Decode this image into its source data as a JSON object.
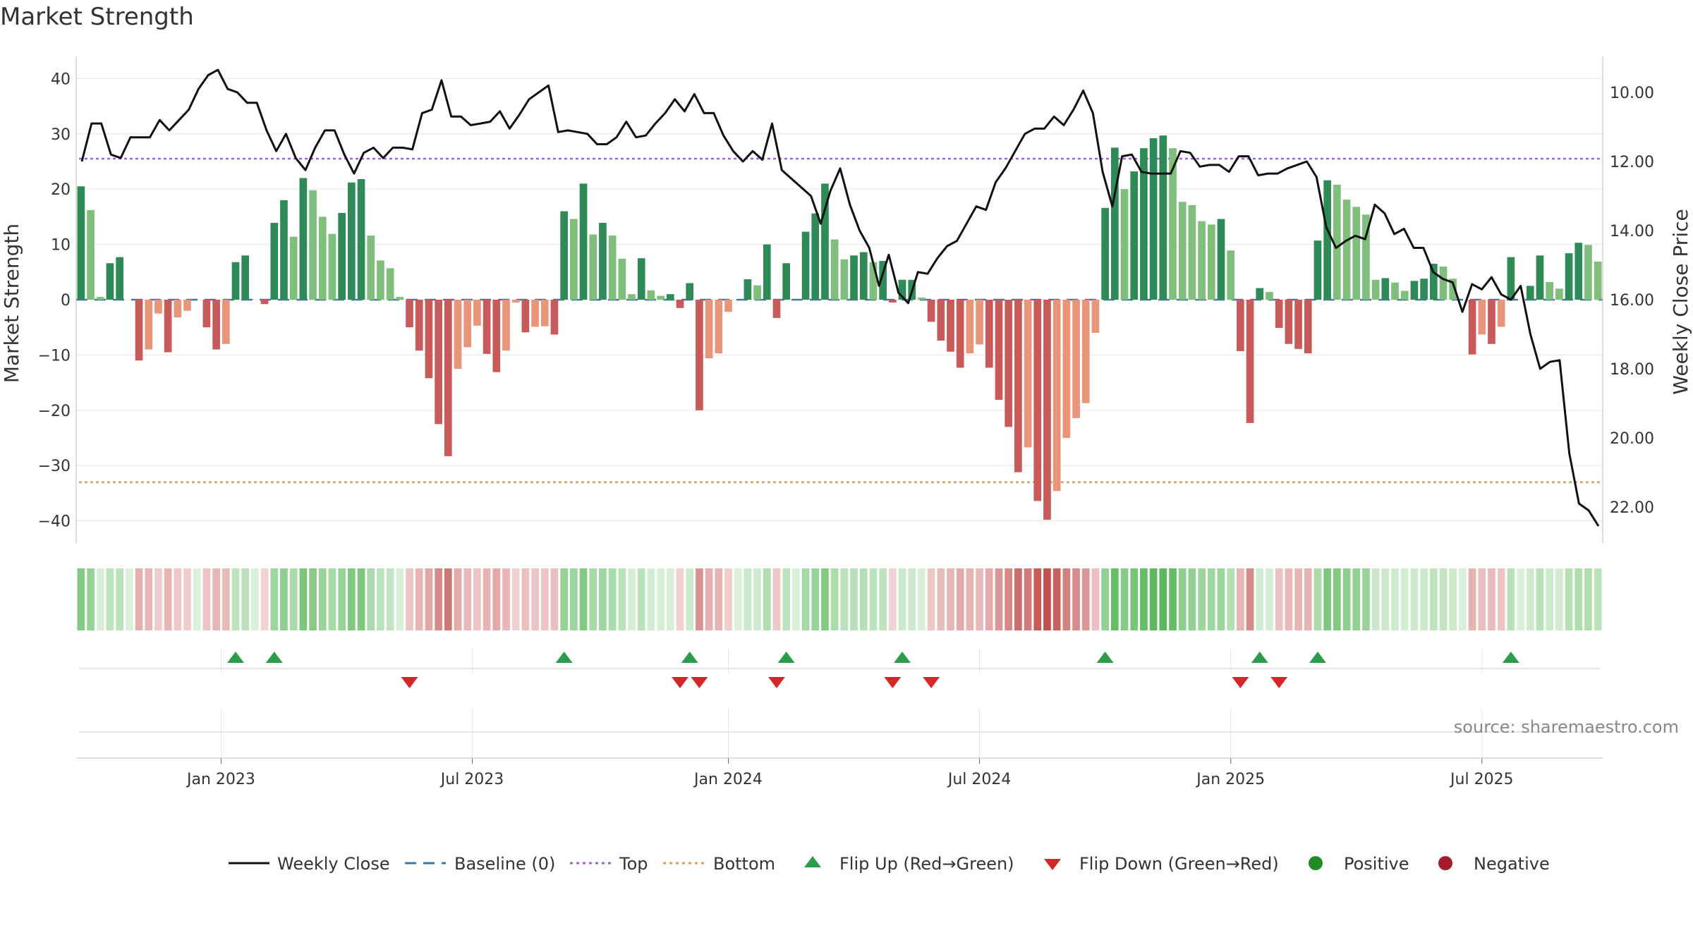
{
  "chart_data": {
    "type": "bar",
    "title": "Market Strength",
    "ylabel_left": "Market Strength",
    "ylabel_right": "Weekly Close Price",
    "ylim_left": [
      -44,
      44
    ],
    "ylim_right": [
      9,
      23
    ],
    "yticks_left": [
      40,
      30,
      20,
      10,
      0,
      -10,
      -20,
      -30,
      -40
    ],
    "yticks_left_labels": [
      "40",
      "30",
      "20",
      "10",
      "0",
      "−10",
      "−20",
      "−30",
      "−40"
    ],
    "yticks_right": [
      22,
      20,
      18,
      16,
      14,
      12,
      10
    ],
    "yticks_right_labels": [
      "22.00",
      "20.00",
      "18.00",
      "16.00",
      "14.00",
      "12.00",
      "10.00"
    ],
    "x_ticks": [
      "Jan 2023",
      "Jul 2023",
      "Jan 2024",
      "Jul 2024",
      "Jan 2025",
      "Jul 2025"
    ],
    "x_tick_weeks": [
      15,
      41,
      67.5,
      93.5,
      119.5,
      145.5
    ],
    "top_line": 25.5,
    "bottom_line": -33,
    "strength": [
      20.5,
      16.2,
      0.5,
      6.6,
      7.7,
      0,
      -11,
      -9,
      -2.5,
      -9.5,
      -3.2,
      -2,
      0,
      -5,
      -9,
      -8,
      6.8,
      8,
      0,
      -0.8,
      13.9,
      18,
      11.4,
      22,
      19.8,
      15,
      11.9,
      15.7,
      21.2,
      21.8,
      11.6,
      7.1,
      5.7,
      0.5,
      -5,
      -9.2,
      -14.2,
      -22.5,
      -28.3,
      -12.5,
      -8.6,
      -4.7,
      -9.8,
      -13.1,
      -9.2,
      -0.5,
      -5.9,
      -4.9,
      -4.8,
      -6.3,
      16,
      14.6,
      21,
      11.8,
      13.9,
      11.6,
      7.4,
      1,
      7.5,
      1.7,
      0.7,
      1,
      -1.5,
      3,
      -20,
      -10.6,
      -9.7,
      -2.2,
      0,
      3.7,
      2.6,
      10,
      -3.3,
      6.6,
      0,
      12.3,
      15.6,
      21,
      10.9,
      7.3,
      8,
      8.6,
      6.8,
      7,
      -0.5,
      3.6,
      3.6,
      0.4,
      -4,
      -7.4,
      -9.4,
      -12.3,
      -9.7,
      -8.1,
      -12.3,
      -18.1,
      -23,
      -31.2,
      -26.7,
      -36.4,
      -39.8,
      -34.6,
      -25,
      -21.4,
      -18.7,
      -6,
      16.6,
      27.5,
      20,
      23.2,
      27.4,
      29.2,
      29.7,
      27.4,
      17.7,
      17.1,
      14.2,
      13.6,
      14.6,
      8.9,
      -9.3,
      -22.3,
      2.1,
      1.4,
      -5.1,
      -8,
      -8.9,
      -9.7,
      10.7,
      21.6,
      20.8,
      18.1,
      16.8,
      15.4,
      3.6,
      3.9,
      3.1,
      1.6,
      3.4,
      3.8,
      6.5,
      6,
      3.8,
      0,
      -9.9,
      -6.3,
      -8,
      -4.9,
      7.7,
      0,
      2.5,
      8,
      3.2,
      2,
      8.4,
      10.3,
      9.9,
      6.9
    ],
    "weekly_close": [
      12.0,
      10.9,
      10.9,
      11.8,
      11.9,
      11.3,
      11.3,
      11.3,
      10.8,
      11.1,
      10.8,
      10.5,
      9.9,
      9.5,
      9.35,
      9.9,
      10.0,
      10.3,
      10.3,
      11.1,
      11.7,
      11.2,
      11.9,
      12.25,
      11.6,
      11.1,
      11.1,
      11.8,
      12.35,
      11.75,
      11.6,
      11.9,
      11.6,
      11.6,
      11.65,
      10.6,
      10.5,
      9.65,
      10.7,
      10.7,
      10.95,
      10.9,
      10.85,
      10.55,
      11.05,
      10.65,
      10.2,
      10.0,
      9.8,
      11.15,
      11.1,
      11.15,
      11.2,
      11.5,
      11.5,
      11.3,
      10.85,
      11.3,
      11.25,
      10.9,
      10.6,
      10.2,
      10.55,
      10.05,
      10.6,
      10.6,
      11.25,
      11.7,
      12.0,
      11.7,
      11.95,
      10.9,
      12.25,
      12.5,
      12.75,
      13.0,
      13.8,
      12.85,
      12.2,
      13.25,
      14.0,
      14.5,
      15.6,
      14.7,
      15.8,
      16.1,
      15.2,
      15.25,
      14.8,
      14.45,
      14.3,
      13.8,
      13.3,
      13.4,
      12.6,
      12.2,
      11.7,
      11.2,
      11.05,
      11.05,
      10.7,
      10.95,
      10.5,
      9.95,
      10.6,
      12.3,
      13.3,
      11.85,
      11.8,
      12.3,
      12.35,
      12.35,
      12.35,
      11.7,
      11.75,
      12.15,
      12.1,
      12.1,
      12.3,
      11.85,
      11.85,
      12.4,
      12.35,
      12.35,
      12.2,
      12.1,
      12.0,
      12.45,
      13.9,
      14.5,
      14.3,
      14.15,
      14.25,
      13.25,
      13.5,
      14.1,
      13.95,
      14.5,
      14.5,
      15.2,
      15.4,
      15.5,
      16.35,
      15.55,
      15.7,
      15.35,
      15.85,
      16.0,
      15.6,
      17.0,
      18.0,
      17.8,
      17.75,
      20.45,
      21.9,
      22.1,
      22.55
    ]
  },
  "legend": {
    "weekly_close": "Weekly Close",
    "baseline": "Baseline (0)",
    "top": "Top",
    "bottom": "Bottom",
    "flip_up": "Flip Up (Red→Green)",
    "flip_down": "Flip Down (Green→Red)",
    "positive": "Positive",
    "negative": "Negative"
  },
  "source": "source: sharemaestro.com",
  "colors": {
    "green_dark": "#2e8b57",
    "green_light": "#7fbf7b",
    "red_dark": "#c85a5a",
    "red_light": "#e8957a",
    "top_line": "#9966cc",
    "bottom_line": "#d4a05a",
    "baseline": "#3a78b0",
    "flip_up": "#2a9d4a",
    "flip_down": "#d62728",
    "positive": "#228b22",
    "negative": "#a51c2a"
  }
}
